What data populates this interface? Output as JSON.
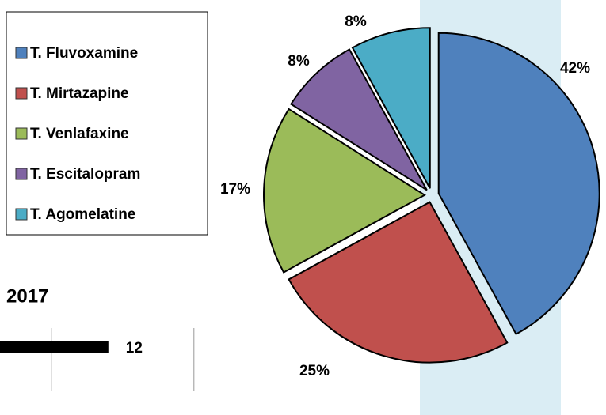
{
  "chart_data": [
    {
      "type": "pie",
      "categories": [
        "T. Fluvoxamine",
        "T. Mirtazapine",
        "T. Venlafaxine",
        "T. Escitalopram",
        "T. Agomelatine"
      ],
      "values": [
        42,
        25,
        17,
        8,
        8
      ],
      "value_labels": [
        "42%",
        "25%",
        "17%",
        "8%",
        "8%"
      ],
      "colors": [
        "#4f81bd",
        "#c0504d",
        "#9bbb59",
        "#8064a2",
        "#4bacc6"
      ],
      "legend": "left"
    },
    {
      "type": "hbar",
      "title": "2017",
      "values": [
        12
      ],
      "value_labels": [
        "12"
      ],
      "color": "#000000",
      "xlim": [
        8.2,
        29.45
      ],
      "xticks": [
        10,
        15
      ],
      "grid": true
    }
  ]
}
